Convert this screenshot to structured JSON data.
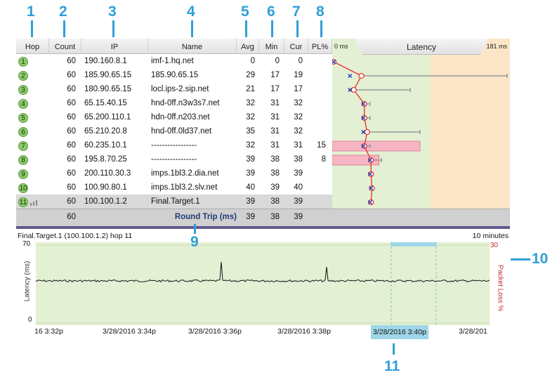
{
  "callouts": [
    "1",
    "2",
    "3",
    "4",
    "5",
    "6",
    "7",
    "8",
    "9",
    "10",
    "11"
  ],
  "table": {
    "columns": {
      "hop": "Hop",
      "count": "Count",
      "ip": "IP",
      "name": "Name",
      "avg": "Avg",
      "min": "Min",
      "cur": "Cur",
      "pl": "PL%",
      "latency": "Latency"
    },
    "latency_range": {
      "min_label": "0 ms",
      "max_label": "181 ms",
      "max_ms": 181
    },
    "rows": [
      {
        "hop": "1",
        "count": "60",
        "ip": "190.160.8.1",
        "name": "imf-1.hq.net",
        "avg": "0",
        "min": "0",
        "cur": "0",
        "pl": "",
        "avg_ms": 0,
        "min_ms": 0,
        "cur_ms": 0,
        "max_ms": 0,
        "loss_pct": 0
      },
      {
        "hop": "2",
        "count": "60",
        "ip": "185.90.65.15",
        "name": "185.90.65.15",
        "avg": "29",
        "min": "17",
        "cur": "19",
        "pl": "",
        "avg_ms": 29,
        "min_ms": 17,
        "cur_ms": 19,
        "max_ms": 181,
        "loss_pct": 0
      },
      {
        "hop": "3",
        "count": "60",
        "ip": "180.90.65.15",
        "name": "locl.ips-2.sip.net",
        "avg": "21",
        "min": "17",
        "cur": "17",
        "pl": "",
        "avg_ms": 21,
        "min_ms": 17,
        "cur_ms": 17,
        "max_ms": 80,
        "loss_pct": 0
      },
      {
        "hop": "4",
        "count": "60",
        "ip": "65.15.40.15",
        "name": "hnd-0ff.n3w3s7.net",
        "avg": "32",
        "min": "31",
        "cur": "32",
        "pl": "",
        "avg_ms": 32,
        "min_ms": 31,
        "cur_ms": 32,
        "max_ms": 38,
        "loss_pct": 0
      },
      {
        "hop": "5",
        "count": "60",
        "ip": "65.200.110.1",
        "name": "hdn-0ff.n203.net",
        "avg": "32",
        "min": "31",
        "cur": "32",
        "pl": "",
        "avg_ms": 32,
        "min_ms": 31,
        "cur_ms": 32,
        "max_ms": 38,
        "loss_pct": 0
      },
      {
        "hop": "6",
        "count": "60",
        "ip": "65.210.20.8",
        "name": "hnd-0ff.0ld37.net",
        "avg": "35",
        "min": "31",
        "cur": "32",
        "pl": "",
        "avg_ms": 35,
        "min_ms": 31,
        "cur_ms": 32,
        "max_ms": 90,
        "loss_pct": 0
      },
      {
        "hop": "7",
        "count": "60",
        "ip": "60.235.10.1",
        "name": "-----------------",
        "avg": "32",
        "min": "31",
        "cur": "31",
        "pl": "15",
        "avg_ms": 32,
        "min_ms": 31,
        "cur_ms": 31,
        "max_ms": 38,
        "loss_pct": 15
      },
      {
        "hop": "8",
        "count": "60",
        "ip": "195.8.70.25",
        "name": "-----------------",
        "avg": "39",
        "min": "38",
        "cur": "38",
        "pl": "8",
        "avg_ms": 39,
        "min_ms": 38,
        "cur_ms": 38,
        "max_ms": 50,
        "loss_pct": 8
      },
      {
        "hop": "9",
        "count": "60",
        "ip": "200.110.30.3",
        "name": "imps.1bl3.2.dia.net",
        "avg": "39",
        "min": "38",
        "cur": "39",
        "pl": "",
        "avg_ms": 39,
        "min_ms": 38,
        "cur_ms": 39,
        "max_ms": 39,
        "loss_pct": 0
      },
      {
        "hop": "10",
        "count": "60",
        "ip": "100.90.80.1",
        "name": "imps.1bl3.2.slv.net",
        "avg": "40",
        "min": "39",
        "cur": "40",
        "pl": "",
        "avg_ms": 40,
        "min_ms": 39,
        "cur_ms": 40,
        "max_ms": 40,
        "loss_pct": 0
      },
      {
        "hop": "11",
        "count": "60",
        "ip": "100.100.1.2",
        "name": "Final.Target.1",
        "avg": "39",
        "min": "38",
        "cur": "39",
        "pl": "",
        "avg_ms": 39,
        "min_ms": 38,
        "cur_ms": 39,
        "max_ms": 39,
        "loss_pct": 0
      }
    ],
    "total": {
      "count": "60",
      "label": "Round Trip (ms)",
      "avg": "39",
      "min": "38",
      "cur": "39"
    }
  },
  "history": {
    "title": "Final.Target.1 (100.100.1.2) hop 11",
    "timespan": "10 minutes",
    "y_left_max": "70",
    "y_left_min": "0",
    "y_right_max": "30",
    "y_left_label": "Latency (ms)",
    "y_right_label": "Packet Loss %",
    "x_ticks": [
      "16 3:32p",
      "3/28/2016 3:34p",
      "3/28/2016 3:36p",
      "3/28/2016 3:38p",
      "3/28/2016 3:40p",
      "3/28/201"
    ]
  },
  "colors": {
    "good": "#e3f0d3",
    "warn": "#fbe6c7",
    "loss": "#f7b4c2",
    "accent": "#2e9fd6",
    "trace": "#e53935",
    "select": "#9fd6e8"
  }
}
